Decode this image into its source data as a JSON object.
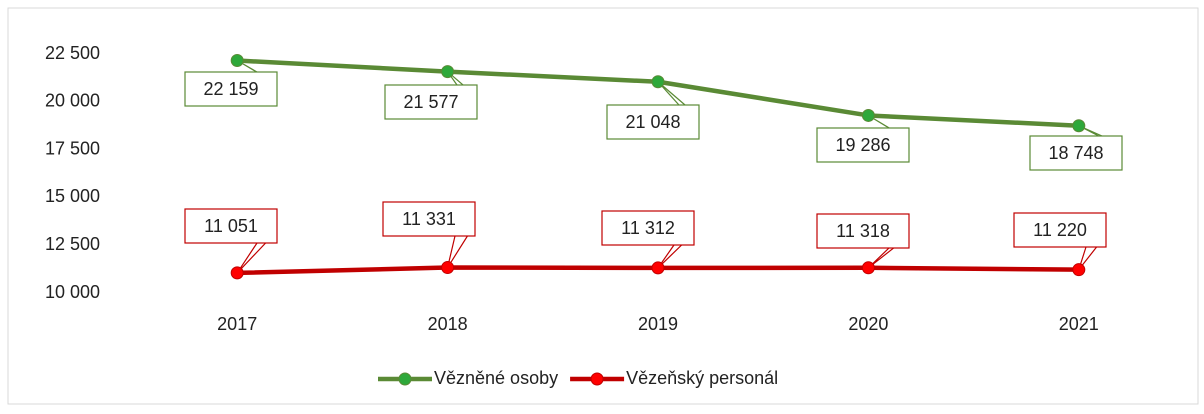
{
  "chart_data": {
    "type": "line",
    "categories": [
      "2017",
      "2018",
      "2019",
      "2020",
      "2021"
    ],
    "series": [
      {
        "name": "Vězněné osoby",
        "color": "#5a8a35",
        "marker_color": "#2ea83a",
        "values": [
          22159,
          21577,
          21048,
          19286,
          18748
        ],
        "value_labels": [
          "22 159",
          "21 577",
          "21 048",
          "19 286",
          "18 748"
        ]
      },
      {
        "name": "Vězeňský personál",
        "color": "#c00000",
        "marker_color": "#ff0000",
        "values": [
          11051,
          11331,
          11312,
          11318,
          11220
        ],
        "value_labels": [
          "11 051",
          "11 331",
          "11 312",
          "11 318",
          "11 220"
        ]
      }
    ],
    "ylim": [
      10000,
      22500
    ],
    "yticks": [
      {
        "value": 10000,
        "label": "10 000"
      },
      {
        "value": 12500,
        "label": "12 500"
      },
      {
        "value": 15000,
        "label": "15 000"
      },
      {
        "value": 17500,
        "label": "17 500"
      },
      {
        "value": 20000,
        "label": "20 000"
      },
      {
        "value": 22500,
        "label": "22 500"
      }
    ],
    "grid": false,
    "legend": "bottom"
  }
}
